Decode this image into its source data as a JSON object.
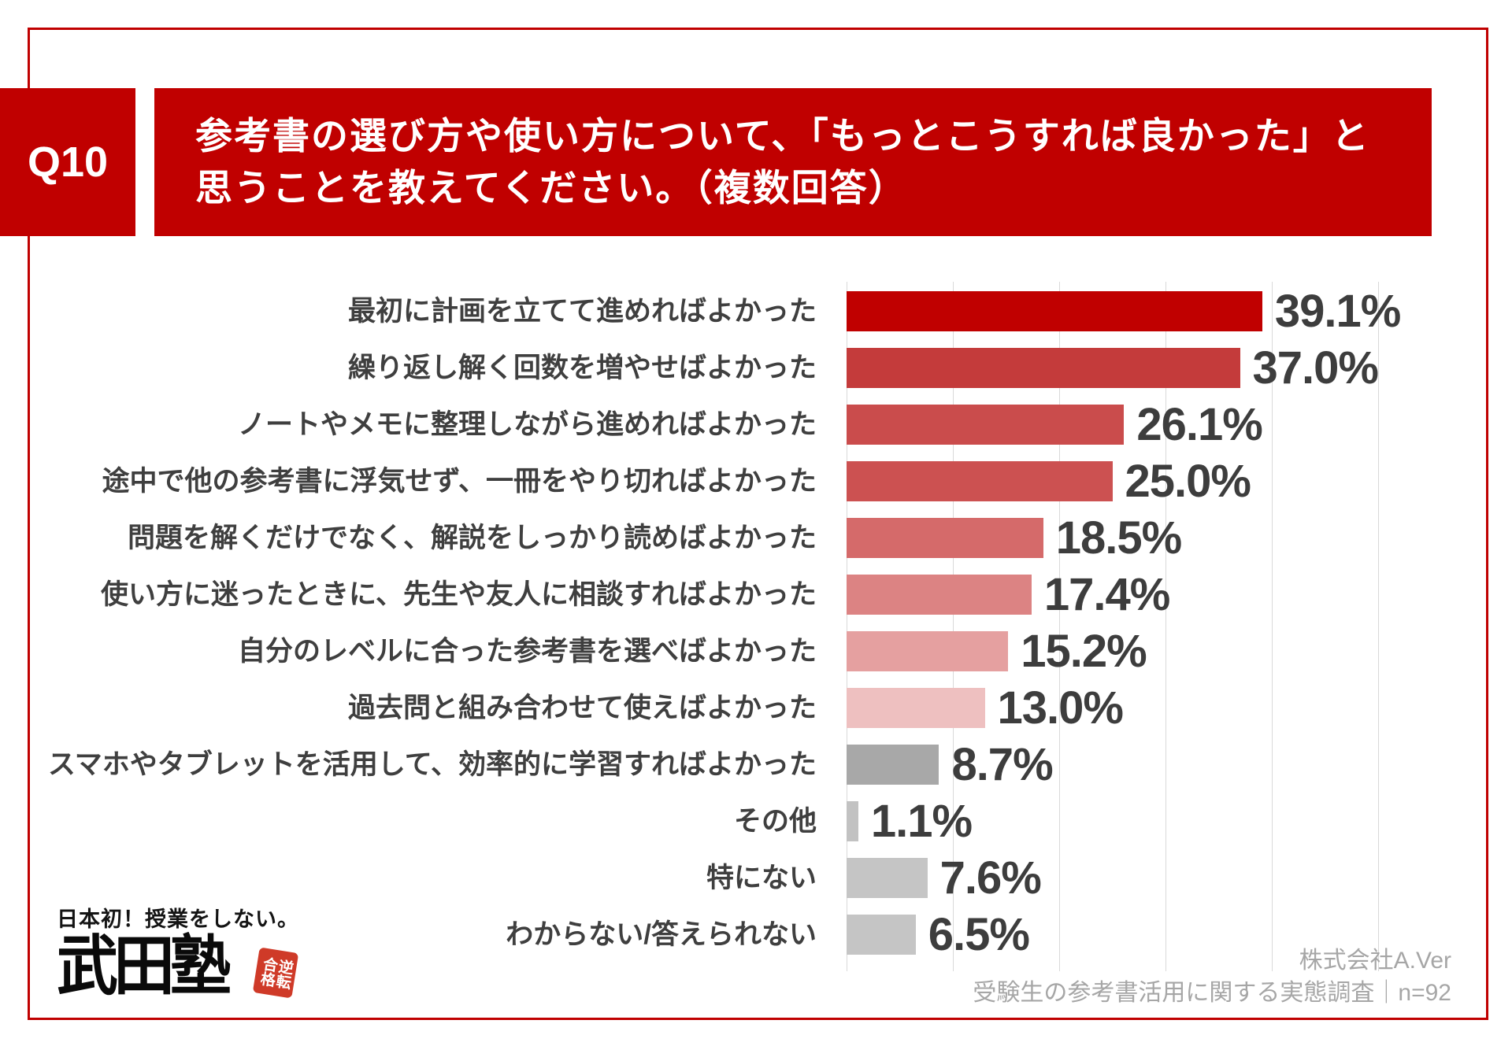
{
  "page": {
    "accent_color": "#c00000",
    "gridline_color": "#d9d9d9",
    "label_color": "#3f3f3f",
    "value_color": "#3d3d3d",
    "footer_color": "#a6a6a6"
  },
  "header": {
    "question_number": "Q10",
    "title_line1": "参考書の選び方や使い方について、「もっとこうすれば良かった」と",
    "title_line2": "思うことを教えてください。（複数回答）"
  },
  "chart_data": {
    "type": "bar",
    "orientation": "horizontal",
    "title": "参考書の選び方や使い方について、「もっとこうすれば良かった」と思うことを教えてください。（複数回答）",
    "xlabel": "",
    "ylabel": "",
    "xlim": [
      0,
      50
    ],
    "grid": true,
    "gridline_step_percent": 10,
    "gridlines_percent": [
      0,
      10,
      20,
      30,
      40,
      50
    ],
    "legend": null,
    "categories": [
      "最初に計画を立てて進めればよかった",
      "繰り返し解く回数を増やせばよかった",
      "ノートやメモに整理しながら進めればよかった",
      "途中で他の参考書に浮気せず、一冊をやり切ればよかった",
      "問題を解くだけでなく、解説をしっかり読めばよかった",
      "使い方に迷ったときに、先生や友人に相談すればよかった",
      "自分のレベルに合った参考書を選べばよかった",
      "過去問と組み合わせて使えばよかった",
      "スマホやタブレットを活用して、効率的に学習すればよかった",
      "その他",
      "特にない",
      "わからない/答えられない"
    ],
    "values": [
      39.1,
      37.0,
      26.1,
      25.0,
      18.5,
      17.4,
      15.2,
      13.0,
      8.7,
      1.1,
      7.6,
      6.5
    ],
    "value_labels": [
      "39.1%",
      "37.0%",
      "26.1%",
      "25.0%",
      "18.5%",
      "17.4%",
      "15.2%",
      "13.0%",
      "8.7%",
      "1.1%",
      "7.6%",
      "6.5%"
    ],
    "bar_colors": [
      "#c00000",
      "#c43b3b",
      "#ca4c4c",
      "#cc5151",
      "#d56a6a",
      "#dc8383",
      "#e5a0a0",
      "#eec0c0",
      "#a8a8a8",
      "#c2c2c2",
      "#c5c5c5",
      "#c5c5c5"
    ]
  },
  "logo": {
    "tagline": "日本初！授業をしない。",
    "name": "武田塾",
    "seal_word1": "逆転",
    "seal_word2": "合格"
  },
  "footer": {
    "company": "株式会社A.Ver",
    "survey": "受験生の参考書活用に関する実態調査｜n=92"
  }
}
